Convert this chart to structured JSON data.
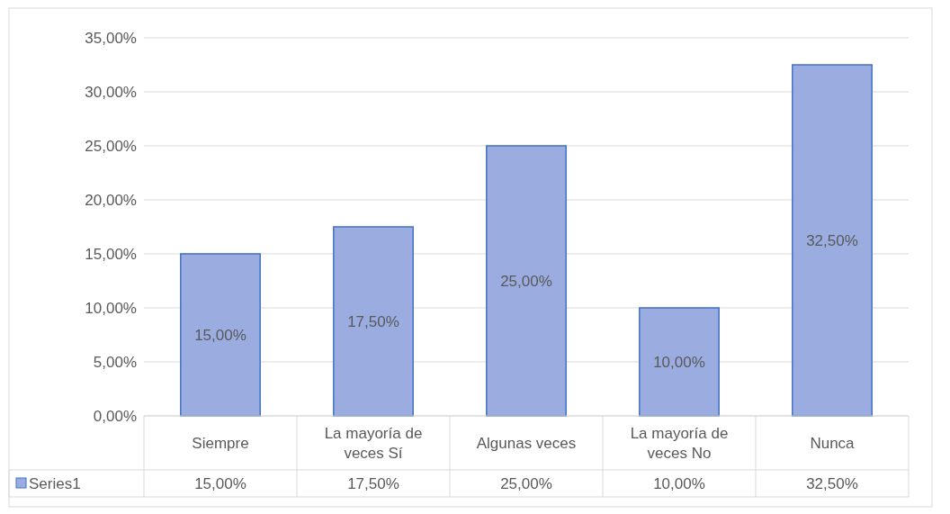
{
  "chart_data": {
    "type": "bar",
    "categories": [
      "Siempre",
      "La mayoría de veces Sí",
      "Algunas veces",
      "La mayoría de veces No",
      "Nunca"
    ],
    "series": [
      {
        "name": "Series1",
        "color": "#9aace0",
        "values": [
          15,
          17.5,
          25,
          10,
          32.5
        ],
        "value_labels": [
          "15,00%",
          "17,50%",
          "25,00%",
          "10,00%",
          "32,50%"
        ]
      }
    ],
    "ylim": [
      0,
      35
    ],
    "yticks": [
      {
        "value": 0,
        "label": "0,00%"
      },
      {
        "value": 5,
        "label": "5,00%"
      },
      {
        "value": 10,
        "label": "10,00%"
      },
      {
        "value": 15,
        "label": "15,00%"
      },
      {
        "value": 20,
        "label": "20,00%"
      },
      {
        "value": 25,
        "label": "25,00%"
      },
      {
        "value": 30,
        "label": "30,00%"
      },
      {
        "value": 35,
        "label": "35,00%"
      }
    ],
    "grid": "y",
    "legend": "bottom"
  }
}
